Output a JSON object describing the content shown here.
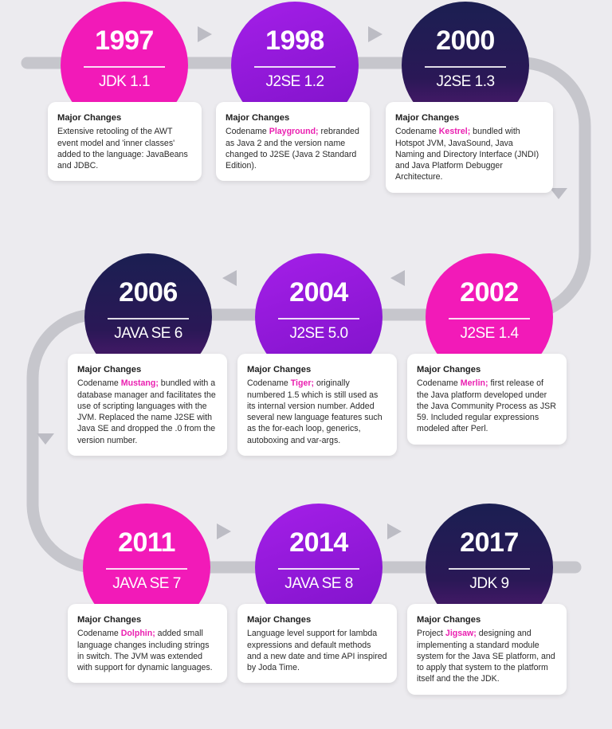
{
  "milestones": [
    {
      "year": "1997",
      "version": "JDK 1.1",
      "heading": "Major Changes",
      "pre": "Extensive retooling of the AWT event model and 'inner classes' added to the language: JavaBeans and JDBC.",
      "codename": "",
      "post": ""
    },
    {
      "year": "1998",
      "version": "J2SE 1.2",
      "heading": "Major Changes",
      "pre": "Codename ",
      "codename": "Playground;",
      "post": " rebranded as Java 2 and the version name changed to J2SE (Java 2 Standard Edition)."
    },
    {
      "year": "2000",
      "version": "J2SE 1.3",
      "heading": "Major Changes",
      "pre": "Codename ",
      "codename": "Kestrel;",
      "post": " bundled with Hotspot JVM, JavaSound, Java Naming and Directory Interface (JNDI) and Java Platform Debugger Architecture."
    },
    {
      "year": "2002",
      "version": "J2SE 1.4",
      "heading": "Major Changes",
      "pre": "Codename ",
      "codename": "Merlin;",
      "post": " first release of the Java platform developed under the Java Community Process as JSR 59. Included regular expressions modeled after Perl."
    },
    {
      "year": "2004",
      "version": "J2SE 5.0",
      "heading": "Major Changes",
      "pre": "Codename ",
      "codename": "Tiger;",
      "post": " originally numbered 1.5 which is still used as its internal version number. Added several new language features such as the for-each loop, generics, autoboxing and var-args."
    },
    {
      "year": "2006",
      "version": "JAVA SE 6",
      "heading": "Major Changes",
      "pre": "Codename ",
      "codename": "Mustang;",
      "post": " bundled with a database manager and facilitates the use of scripting languages with the JVM. Replaced the name J2SE with Java SE and dropped the .0 from the version number."
    },
    {
      "year": "2011",
      "version": "JAVA SE 7",
      "heading": "Major Changes",
      "pre": "Codename ",
      "codename": "Dolphin;",
      "post": " added small language changes including strings in switch. The JVM was extended with support for dynamic languages."
    },
    {
      "year": "2014",
      "version": "JAVA SE 8",
      "heading": "Major Changes",
      "pre": "Language level support for lambda expressions and default methods and a new date and time API inspired by Joda Time.",
      "codename": "",
      "post": ""
    },
    {
      "year": "2017",
      "version": "JDK 9",
      "heading": "Major Changes",
      "pre": "Project ",
      "codename": "Jigsaw;",
      "post": " designing and implementing a standard module system for the Java SE platform, and to apply that system to the platform itself and the the JDK."
    }
  ],
  "colors": {
    "pink": "#f21ab8",
    "purple": "#9318dd",
    "navy": "#1b1f52",
    "track": "#c6c6cc",
    "accent": "#ea1fb0"
  },
  "node_styles": [
    "pink",
    "purple",
    "navy",
    "pink",
    "purple",
    "navy",
    "pink",
    "purple",
    "navy"
  ]
}
